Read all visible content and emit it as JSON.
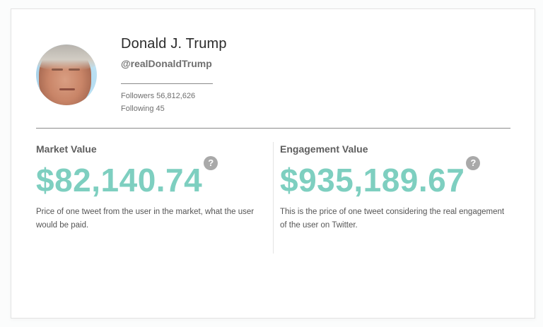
{
  "profile": {
    "name": "Donald J. Trump",
    "handle": "@realDonaldTrump",
    "followers_label": "Followers 56,812,626",
    "following_label": "Following 45",
    "avatar_icon": "user-avatar-photo"
  },
  "metrics": {
    "market": {
      "label": "Market Value",
      "value": "$82,140.74",
      "help_icon": "?",
      "description": "Price of one tweet from the user in the market, what the user would be paid."
    },
    "engagement": {
      "label": "Engagement Value",
      "value": "$935,189.67",
      "help_icon": "?",
      "description": "This is the price of one tweet considering the real engagement of the user on Twitter."
    }
  },
  "colors": {
    "accent": "#7ecfc0",
    "help_icon": "#a9a9a9",
    "text_dark": "#2b2b2b",
    "text_muted": "#6f6f6f"
  }
}
